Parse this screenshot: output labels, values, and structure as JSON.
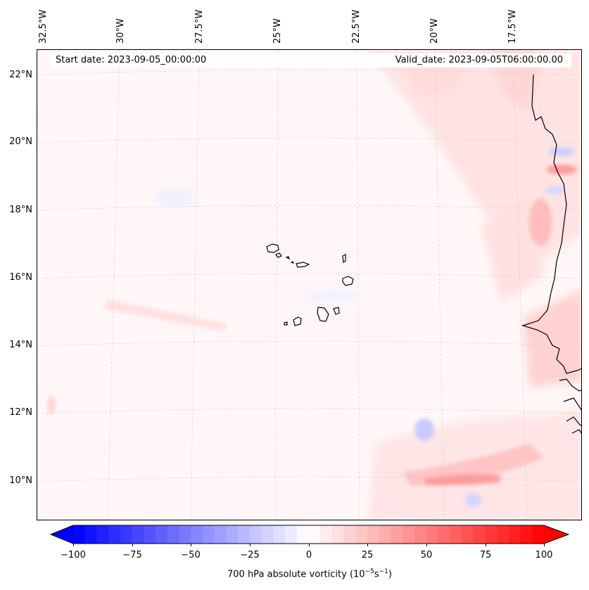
{
  "map": {
    "header": {
      "start_date": "Start date: 2023-09-05_00:00:00",
      "valid_date": "Valid_date: 2023-09-05T06:00:00.00"
    },
    "longitude_labels": [
      "32.5°W",
      "30°W",
      "27.5°W",
      "25°W",
      "22.5°W",
      "20°W",
      "17.5°W"
    ],
    "latitude_labels": [
      "22°N",
      "20°N",
      "18°N",
      "16°N",
      "14°N",
      "12°N",
      "10°N"
    ],
    "colorbar": {
      "title_prefix": "700 hPa absolute vorticity (10",
      "title_exp1": "−5",
      "title_mid": "s",
      "title_exp2": "−1",
      "title_suffix": ")",
      "ticks": [
        "−100",
        "−75",
        "−50",
        "−25",
        "0",
        "25",
        "50",
        "75",
        "100"
      ],
      "range": [
        -100,
        100
      ],
      "cmap": "bwr",
      "min_color": "#0000ff",
      "mid_color": "#ffffff",
      "max_color": "#ff0000"
    }
  }
}
